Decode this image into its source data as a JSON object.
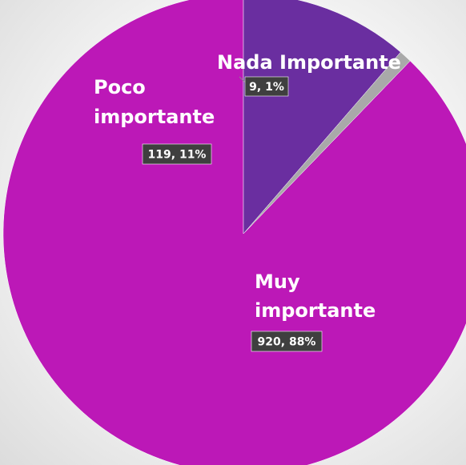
{
  "chart_data": {
    "type": "pie",
    "title": "",
    "slices": [
      {
        "label": "Muy importante",
        "value": 920,
        "percent": "88%",
        "color": "#bc18b7"
      },
      {
        "label": "Nada Importante",
        "value": 9,
        "percent": "1%",
        "color": "#a9a9a9"
      },
      {
        "label": "Poco importante",
        "value": 119,
        "percent": "11%",
        "color": "#6a2ea0"
      }
    ],
    "start": "12 o'clock",
    "direction": "counterclockwise",
    "legend": "none",
    "data_label_format": "{value}, {percent}"
  }
}
